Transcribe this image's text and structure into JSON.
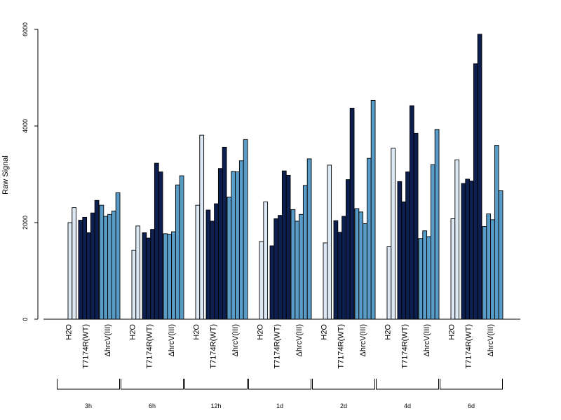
{
  "chart_data": {
    "type": "bar",
    "ylabel": "Raw Signal",
    "ylim": [
      0,
      6000
    ],
    "yticks": [
      "0",
      "2000",
      "4000",
      "6000"
    ],
    "condition_labels": [
      "H2O",
      "T7174R(WT)",
      "ΔhrcV(III)"
    ],
    "condition_colors": [
      "#dde8f5",
      "#0d1f4f",
      "#5a9cc8"
    ],
    "groups": [
      {
        "name": "3h",
        "H2O": [
          2000,
          2310
        ],
        "T7174R(WT)": [
          2050,
          2110,
          1790,
          2200,
          2460
        ],
        "ΔhrcV(III)": [
          2360,
          2130,
          2170,
          2240,
          2620
        ]
      },
      {
        "name": "6h",
        "H2O": [
          1430,
          1930
        ],
        "T7174R(WT)": [
          1790,
          1680,
          1860,
          3230,
          3050
        ],
        "ΔhrcV(III)": [
          1770,
          1760,
          1810,
          2780,
          2970
        ]
      },
      {
        "name": "12h",
        "H2O": [
          2360,
          3810
        ],
        "T7174R(WT)": [
          2260,
          2030,
          2390,
          3120,
          3560
        ],
        "ΔhrcV(III)": [
          2530,
          3060,
          3050,
          3280,
          3720
        ]
      },
      {
        "name": "1d",
        "H2O": [
          1610,
          2430
        ],
        "T7174R(WT)": [
          1520,
          2080,
          2150,
          3070,
          2980
        ],
        "ΔhrcV(III)": [
          2270,
          2030,
          2170,
          2770,
          3320
        ]
      },
      {
        "name": "2d",
        "H2O": [
          1580,
          3190
        ],
        "T7174R(WT)": [
          2040,
          1800,
          2130,
          2890,
          4370
        ],
        "ΔhrcV(III)": [
          2290,
          2220,
          1980,
          3330,
          4530
        ]
      },
      {
        "name": "4d",
        "H2O": [
          1500,
          3540
        ],
        "T7174R(WT)": [
          2850,
          2430,
          3050,
          4420,
          3850
        ],
        "ΔhrcV(III)": [
          1670,
          1830,
          1710,
          3200,
          3930
        ]
      },
      {
        "name": "6d",
        "H2O": [
          2080,
          3300
        ],
        "T7174R(WT)": [
          2810,
          2900,
          2860,
          5290,
          5900
        ],
        "ΔhrcV(III)": [
          1920,
          2180,
          2060,
          3600,
          2660
        ]
      }
    ]
  }
}
